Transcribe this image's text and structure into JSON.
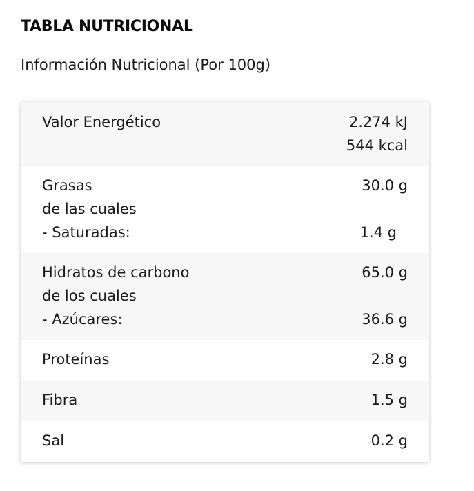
{
  "header": {
    "title": "TABLA NUTRICIONAL",
    "subtitle": "Información Nutricional (Por 100g)"
  },
  "table": {
    "energy": {
      "label": "Valor Energético",
      "value_kj": "2.274 kJ",
      "value_kcal": "544 kcal"
    },
    "grasas": {
      "label": "Grasas",
      "sublabel_intro": "de las cuales",
      "sublabel": "- Saturadas:",
      "value": "30.0 g",
      "subvalue": "1.4 g"
    },
    "hidratos": {
      "label": "Hidratos de carbono",
      "sublabel_intro": "de los cuales",
      "sublabel": "- Azúcares:",
      "value": "65.0 g",
      "subvalue": "36.6 g"
    },
    "proteinas": {
      "label": "Proteínas",
      "value": "2.8 g"
    },
    "fibra": {
      "label": "Fibra",
      "value": "1.5 g"
    },
    "sal": {
      "label": "Sal",
      "value": "0.2 g"
    }
  }
}
